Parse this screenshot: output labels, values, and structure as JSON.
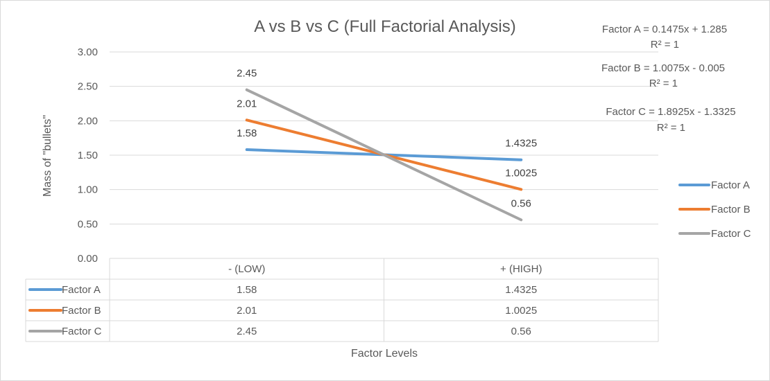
{
  "chart_data": {
    "type": "line",
    "title": "A vs B vs C (Full Factorial Analysis)",
    "xlabel": "Factor Levels",
    "ylabel": "Mass of \"bullets\"",
    "ylim": [
      0,
      3
    ],
    "yticks": [
      "0.00",
      "0.50",
      "1.00",
      "1.50",
      "2.00",
      "2.50",
      "3.00"
    ],
    "categories": [
      "- (LOW)",
      "+ (HIGH)"
    ],
    "grid": true,
    "legend_position": "right",
    "series": [
      {
        "name": "Factor A",
        "color": "#5B9BD5",
        "values": [
          1.58,
          1.4325
        ],
        "labels": [
          "1.58",
          "1.4325"
        ]
      },
      {
        "name": "Factor B",
        "color": "#ED7D31",
        "values": [
          2.01,
          1.0025
        ],
        "labels": [
          "2.01",
          "1.0025"
        ]
      },
      {
        "name": "Factor C",
        "color": "#A5A5A5",
        "values": [
          2.45,
          0.56
        ],
        "labels": [
          "2.45",
          "0.56"
        ]
      }
    ],
    "trendlines": [
      {
        "equation": "Factor A = 0.1475x + 1.285",
        "r2": "R² = 1"
      },
      {
        "equation": "Factor B = 1.0075x - 0.005",
        "r2": "R² = 1"
      },
      {
        "equation": "Factor C = 1.8925x - 1.3325",
        "r2": "R² = 1"
      }
    ]
  }
}
